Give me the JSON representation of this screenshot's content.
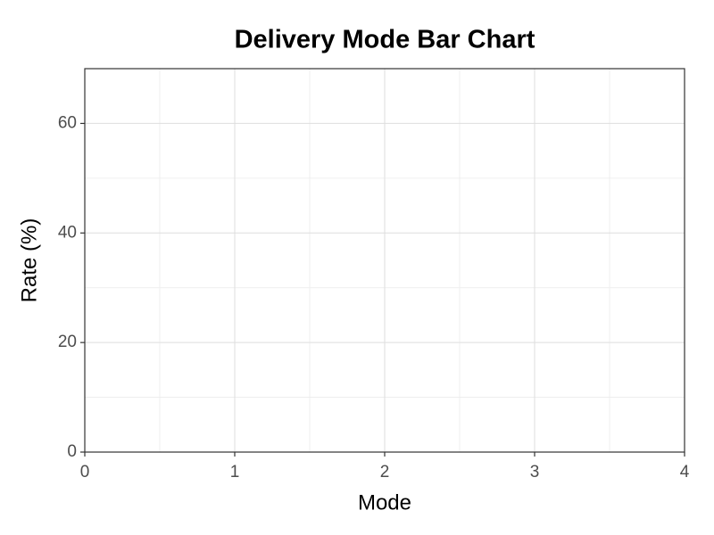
{
  "chart_data": {
    "type": "bar",
    "title": "Delivery Mode Bar Chart",
    "x_label": "Mode",
    "y_label": "Rate (%)",
    "xlim": [
      0,
      4
    ],
    "xticks": [
      0,
      1,
      2,
      3,
      4
    ],
    "ylim": [
      0,
      70
    ],
    "yticks": [
      0,
      20,
      40,
      60
    ],
    "grid": true,
    "minor_grid": true
  }
}
